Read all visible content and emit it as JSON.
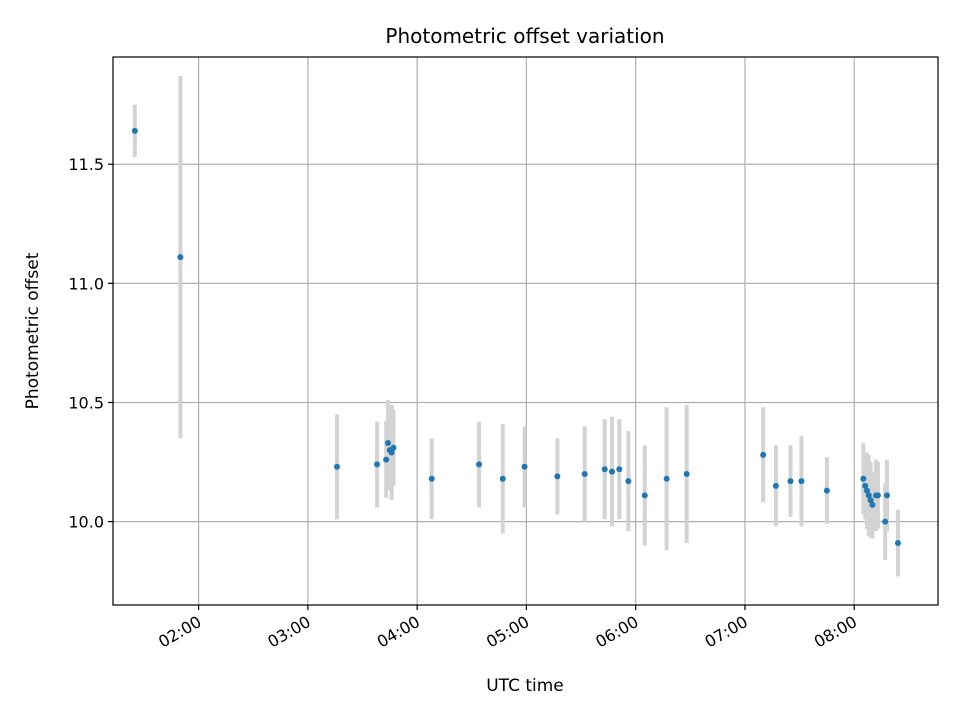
{
  "chart_data": {
    "type": "scatter",
    "title": "Photometric offset variation",
    "xlabel": "UTC time",
    "ylabel": "Photometric offset",
    "xlim": [
      "01:13",
      "08:46"
    ],
    "ylim": [
      9.65,
      11.95
    ],
    "x_ticks": [
      "02:00",
      "03:00",
      "04:00",
      "05:00",
      "06:00",
      "07:00",
      "08:00"
    ],
    "y_ticks": [
      10.0,
      10.5,
      11.0,
      11.5
    ],
    "grid": true,
    "colors": {
      "point": "#1f77b4",
      "error_bar": "#d3d3d3",
      "grid": "#b0b0b0"
    },
    "points": [
      {
        "x": "01:25",
        "y": 11.64,
        "err": 0.11
      },
      {
        "x": "01:50",
        "y": 11.11,
        "err": 0.76
      },
      {
        "x": "03:16",
        "y": 10.23,
        "err": 0.22
      },
      {
        "x": "03:38",
        "y": 10.24,
        "err": 0.18
      },
      {
        "x": "03:43",
        "y": 10.26,
        "err": 0.16
      },
      {
        "x": "03:44",
        "y": 10.33,
        "err": 0.18
      },
      {
        "x": "03:45",
        "y": 10.3,
        "err": 0.17
      },
      {
        "x": "03:46",
        "y": 10.29,
        "err": 0.2
      },
      {
        "x": "03:47",
        "y": 10.31,
        "err": 0.16
      },
      {
        "x": "04:08",
        "y": 10.18,
        "err": 0.17
      },
      {
        "x": "04:34",
        "y": 10.24,
        "err": 0.18
      },
      {
        "x": "04:47",
        "y": 10.18,
        "err": 0.23
      },
      {
        "x": "04:59",
        "y": 10.23,
        "err": 0.17
      },
      {
        "x": "05:17",
        "y": 10.19,
        "err": 0.16
      },
      {
        "x": "05:32",
        "y": 10.2,
        "err": 0.2
      },
      {
        "x": "05:43",
        "y": 10.22,
        "err": 0.21
      },
      {
        "x": "05:47",
        "y": 10.21,
        "err": 0.23
      },
      {
        "x": "05:51",
        "y": 10.22,
        "err": 0.21
      },
      {
        "x": "05:56",
        "y": 10.17,
        "err": 0.21
      },
      {
        "x": "06:05",
        "y": 10.11,
        "err": 0.21
      },
      {
        "x": "06:17",
        "y": 10.18,
        "err": 0.3
      },
      {
        "x": "06:28",
        "y": 10.2,
        "err": 0.29
      },
      {
        "x": "07:10",
        "y": 10.28,
        "err": 0.2
      },
      {
        "x": "07:17",
        "y": 10.15,
        "err": 0.17
      },
      {
        "x": "07:25",
        "y": 10.17,
        "err": 0.15
      },
      {
        "x": "07:31",
        "y": 10.17,
        "err": 0.19
      },
      {
        "x": "07:45",
        "y": 10.13,
        "err": 0.14
      },
      {
        "x": "08:05",
        "y": 10.18,
        "err": 0.15
      },
      {
        "x": "08:06",
        "y": 10.15,
        "err": 0.14
      },
      {
        "x": "08:07",
        "y": 10.13,
        "err": 0.16
      },
      {
        "x": "08:08",
        "y": 10.11,
        "err": 0.17
      },
      {
        "x": "08:09",
        "y": 10.09,
        "err": 0.16
      },
      {
        "x": "08:10",
        "y": 10.07,
        "err": 0.14
      },
      {
        "x": "08:12",
        "y": 10.11,
        "err": 0.15
      },
      {
        "x": "08:13",
        "y": 10.11,
        "err": 0.14
      },
      {
        "x": "08:17",
        "y": 10.0,
        "err": 0.16
      },
      {
        "x": "08:18",
        "y": 10.11,
        "err": 0.15
      },
      {
        "x": "08:24",
        "y": 9.91,
        "err": 0.14
      }
    ]
  }
}
